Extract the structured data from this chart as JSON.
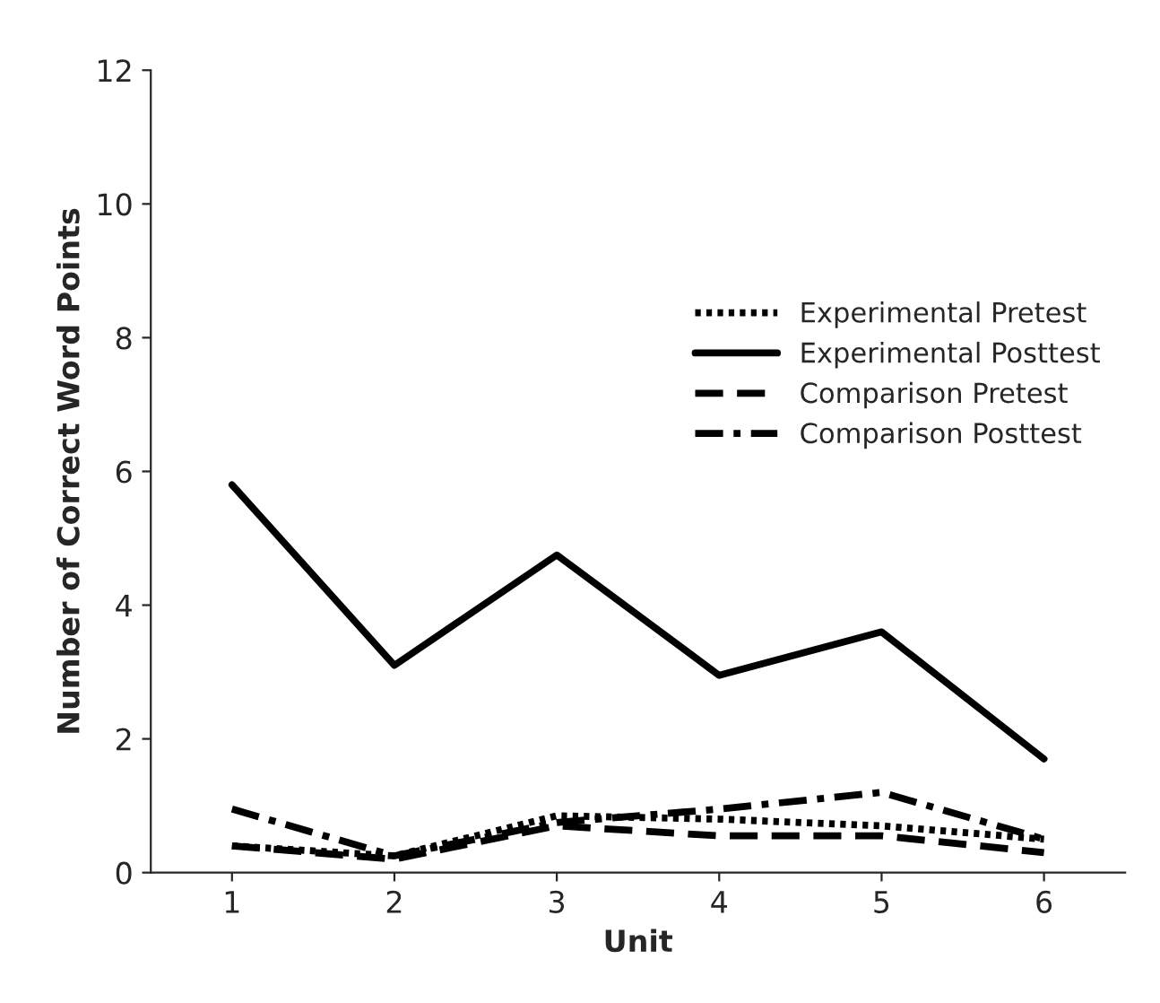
{
  "chart_data": {
    "type": "line",
    "xlabel": "Unit",
    "ylabel": "Number of Correct Word Points",
    "categories": [
      "1",
      "2",
      "3",
      "4",
      "5",
      "6"
    ],
    "ylim": [
      0,
      12
    ],
    "yticks": [
      0,
      2,
      4,
      6,
      8,
      10,
      12
    ],
    "grid": false,
    "legend": "right",
    "marker": "none",
    "series": [
      {
        "name": "Experimental Pretest",
        "color": "#000000",
        "line_style": "dotted",
        "values": [
          0.4,
          0.25,
          0.85,
          0.8,
          0.7,
          0.5
        ]
      },
      {
        "name": "Experimental Posttest",
        "color": "#000000",
        "line_style": "solid",
        "values": [
          5.8,
          3.1,
          4.75,
          2.95,
          3.6,
          1.7
        ]
      },
      {
        "name": "Comparison Pretest",
        "color": "#000000",
        "line_style": "dashed",
        "values": [
          0.4,
          0.2,
          0.7,
          0.55,
          0.55,
          0.3
        ]
      },
      {
        "name": "Comparison Posttest",
        "color": "#000000",
        "line_style": "dashdot",
        "values": [
          0.95,
          0.25,
          0.75,
          0.95,
          1.2,
          0.5
        ]
      }
    ]
  }
}
